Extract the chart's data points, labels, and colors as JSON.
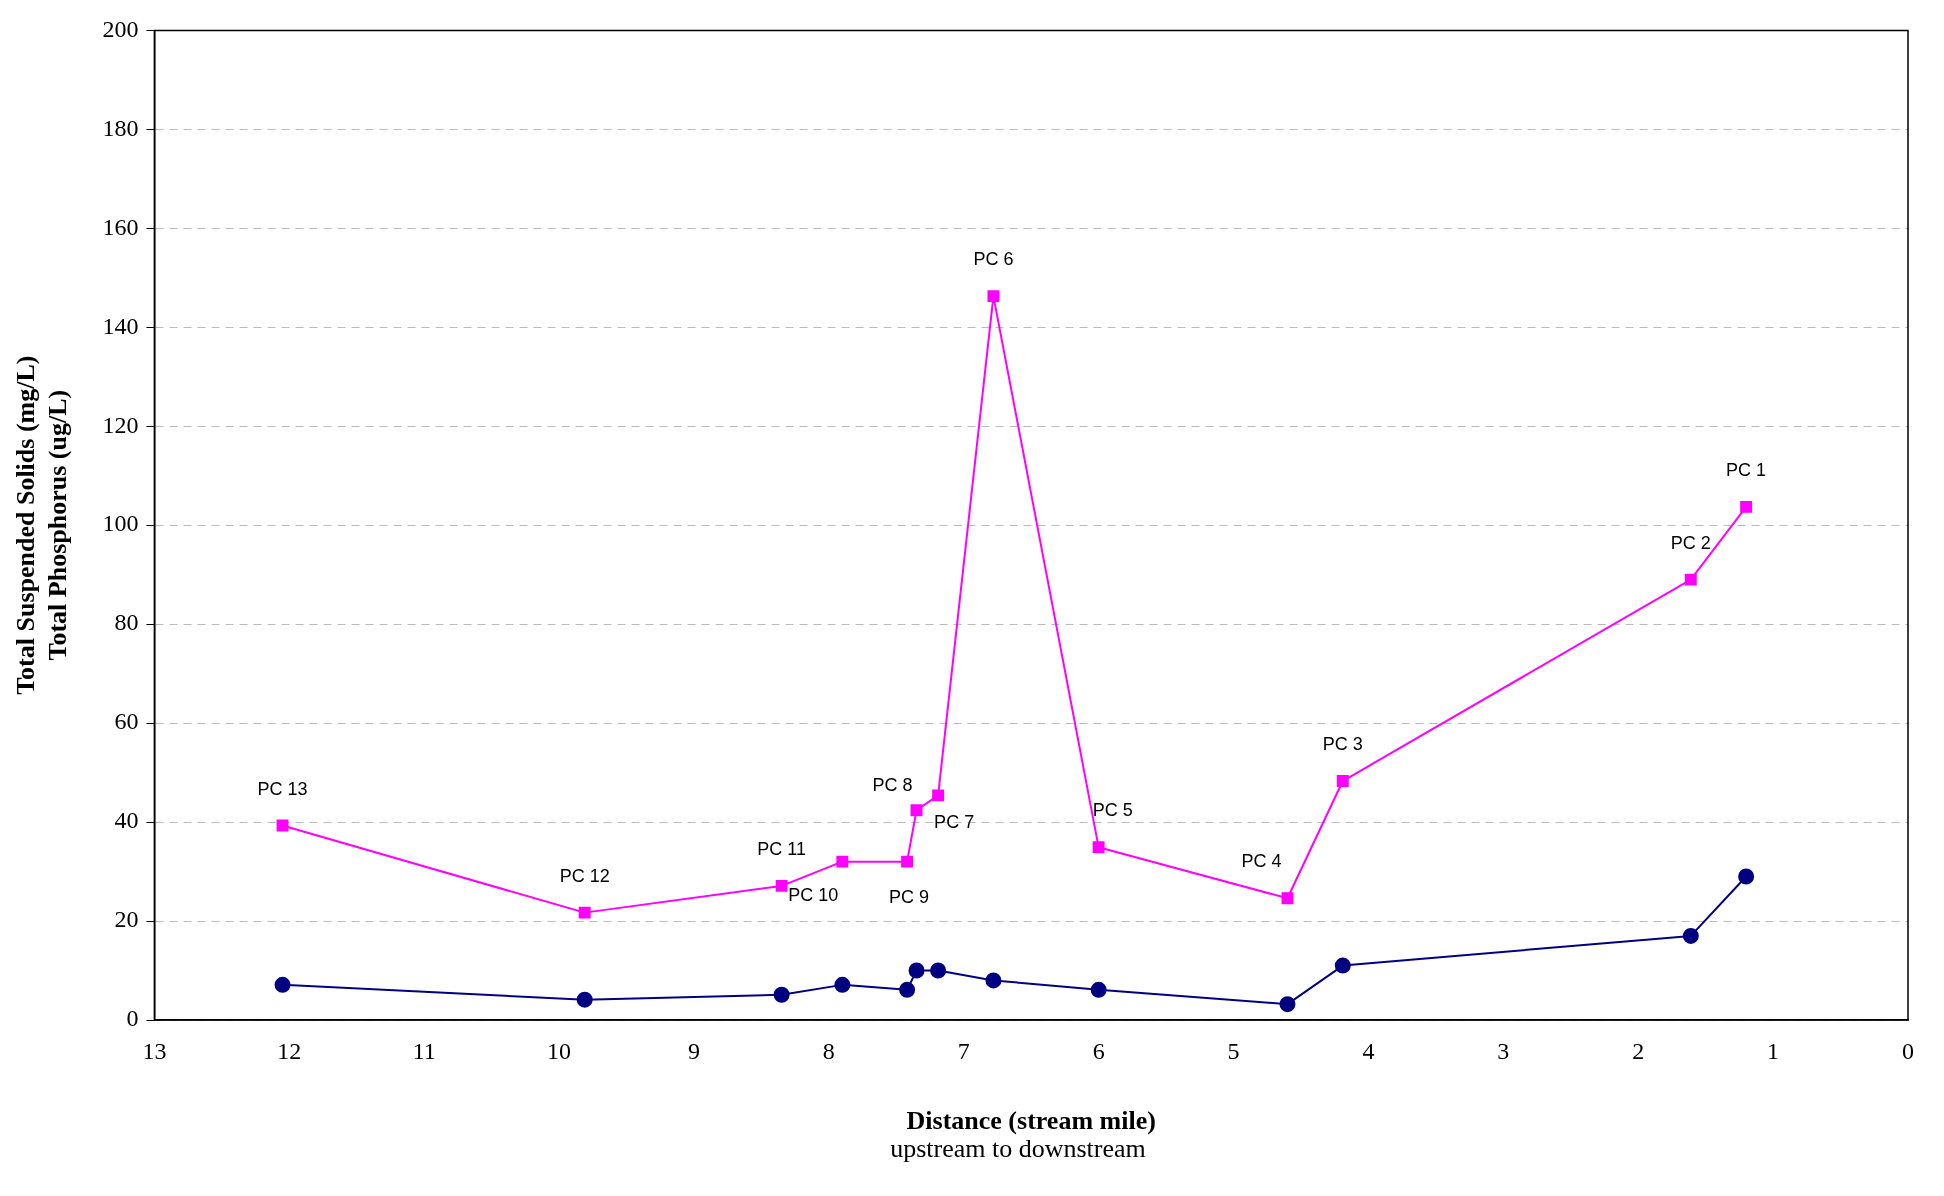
{
  "chart_data": {
    "type": "line",
    "ylabel": "Total Suspended Solids (mg/L)\nTotal Phosphorus (ug/L)",
    "xlabel": "Distance (stream mile)",
    "annotations": [
      "upstream to downstream",
      {
        "text": "PC 13",
        "x": 12.05,
        "y": 39.3
      },
      {
        "text": "PC 12",
        "x": 9.81,
        "y": 21.7
      },
      {
        "text": "PC 11",
        "x": 8.35,
        "y": 27.1
      },
      {
        "text": "PC 10",
        "x": 7.9,
        "y": 32
      },
      {
        "text": "PC 9",
        "x": 7.42,
        "y": 32
      },
      {
        "text": "PC 8",
        "x": 7.35,
        "y": 42.4
      },
      {
        "text": "PC 7",
        "x": 7.19,
        "y": 45.4
      },
      {
        "text": "PC 6",
        "x": 6.78,
        "y": 146.3
      },
      {
        "text": "PC 5",
        "x": 6.0,
        "y": 34.9
      },
      {
        "text": "PC 4",
        "x": 4.6,
        "y": 24.6
      },
      {
        "text": "PC 3",
        "x": 4.19,
        "y": 48.3
      },
      {
        "text": "PC 2",
        "x": 1.61,
        "y": 89
      },
      {
        "text": "PC 1",
        "x": 1.2,
        "y": 103.7
      }
    ],
    "x": [
      12.05,
      9.81,
      8.35,
      7.9,
      7.42,
      7.35,
      7.19,
      6.78,
      6.0,
      4.6,
      4.19,
      1.61,
      1.2
    ],
    "series": [
      {
        "color": "#ff00ff",
        "marker": "square",
        "values": [
          39.3,
          21.7,
          27.1,
          32,
          32,
          42.4,
          45.4,
          146.3,
          34.9,
          24.6,
          48.3,
          89,
          103.7
        ]
      },
      {
        "color": "#000080",
        "marker": "circle",
        "values": [
          7.1,
          4.1,
          5.1,
          7.1,
          6.1,
          10,
          10,
          8,
          6.1,
          3.2,
          11,
          17,
          29
        ]
      }
    ],
    "xlim": [
      13,
      0
    ],
    "xticks": [
      13,
      12,
      11,
      10,
      9,
      8,
      7,
      6,
      5,
      4,
      3,
      2,
      1,
      0
    ],
    "ylim": [
      0,
      200
    ],
    "yticks": [
      0,
      20,
      40,
      60,
      80,
      100,
      120,
      140,
      160,
      180,
      200
    ],
    "grid": "y",
    "legend": false,
    "line_style": "solid"
  }
}
